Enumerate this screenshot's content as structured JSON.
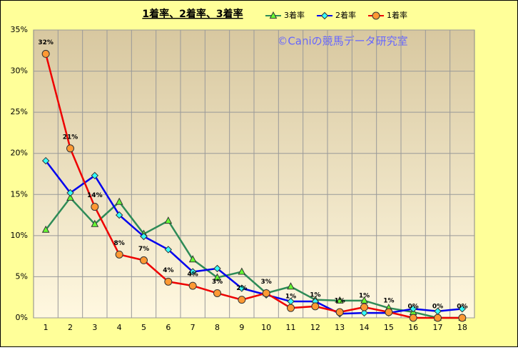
{
  "chart_data": {
    "type": "line",
    "title": "1着率、2着率、3着率",
    "annotation": "©Caniの競馬データ研究室",
    "categories": [
      "1",
      "2",
      "3",
      "4",
      "5",
      "6",
      "7",
      "8",
      "9",
      "10",
      "11",
      "12",
      "13",
      "14",
      "15",
      "16",
      "17",
      "18"
    ],
    "series": [
      {
        "name": "3着率",
        "color": "#2e8b57",
        "marker": "triangle",
        "marker_color": "#66ff33",
        "values": [
          10.7,
          14.6,
          11.4,
          14.1,
          10.2,
          11.8,
          7.1,
          4.9,
          5.6,
          3.0,
          3.8,
          2.2,
          2.1,
          2.1,
          1.2,
          0.7,
          0,
          0
        ]
      },
      {
        "name": "2着率",
        "color": "#0000ee",
        "marker": "diamond",
        "marker_color": "#33ffff",
        "values": [
          19.1,
          15.2,
          17.3,
          12.5,
          9.9,
          8.3,
          5.6,
          6.0,
          3.6,
          2.8,
          2.0,
          2.0,
          0.5,
          0.6,
          0.6,
          1.1,
          0.8,
          1.1
        ]
      },
      {
        "name": "1着率",
        "color": "#ee0000",
        "marker": "circle",
        "marker_color": "#ff9933",
        "values": [
          32.1,
          20.6,
          13.5,
          7.7,
          7.0,
          4.4,
          3.9,
          3.0,
          2.2,
          3.0,
          1.2,
          1.4,
          0.7,
          1.3,
          0.7,
          0,
          0,
          0
        ],
        "value_labels": [
          "32%",
          "21%",
          "14%",
          "8%",
          "7%",
          "4%",
          "4%",
          "3%",
          "2%",
          "3%",
          "1%",
          "1%",
          "1%",
          "1%",
          "1%",
          "0%",
          "0%",
          "0%"
        ]
      }
    ],
    "ylim": [
      0,
      35
    ],
    "yticks": [
      {
        "value": 0,
        "label": "0%"
      },
      {
        "value": 5,
        "label": "5%"
      },
      {
        "value": 10,
        "label": "10%"
      },
      {
        "value": 15,
        "label": "15%"
      },
      {
        "value": 20,
        "label": "20%"
      },
      {
        "value": 25,
        "label": "25%"
      },
      {
        "value": 30,
        "label": "30%"
      },
      {
        "value": 35,
        "label": "35%"
      }
    ],
    "grid": true
  }
}
